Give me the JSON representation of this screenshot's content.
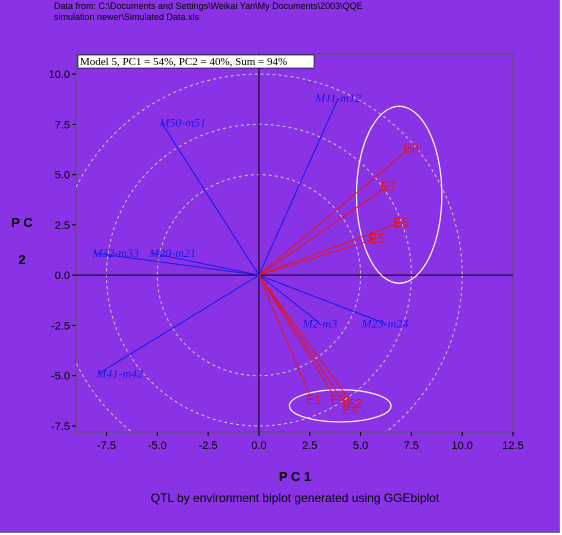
{
  "source_note": {
    "line1": "Data from: C:\\Documents and Settings\\Weikai Yan\\My Documents\\2003\\QQE",
    "line2": "simulation newer\\Simulated Data.xls"
  },
  "colors": {
    "background": "#8a33e6",
    "qtl_vector": "#1a1ae6",
    "environment_vector": "#e61414",
    "concentric_circles": "#c9c9c9",
    "group_ellipses": "#ffffff"
  },
  "chart_data": {
    "type": "scatter",
    "title": "Model 5, PC1 = 54%, PC2 = 40%, Sum = 94%",
    "xlabel": "P C 1",
    "ylabel": "P C 2",
    "caption": "QTL by environment biplot generated using GGEbiplot",
    "xlim": [
      -9.0,
      12.5
    ],
    "ylim": [
      -7.8,
      11.0
    ],
    "xticks": [
      "-7.5",
      "-5.0",
      "-2.5",
      "0.0",
      "2.5",
      "5.0",
      "7.5",
      "10.0",
      "12.5"
    ],
    "yticks": [
      "10.0",
      "7.5",
      "5.0",
      "2.5",
      "0.0",
      "-2.5",
      "-5.0",
      "-7.5"
    ],
    "xtick_values": [
      -7.5,
      -5.0,
      -2.5,
      0.0,
      2.5,
      5.0,
      7.5,
      10.0,
      12.5
    ],
    "ytick_values": [
      10.0,
      7.5,
      5.0,
      2.5,
      0.0,
      -2.5,
      -5.0,
      -7.5
    ],
    "origin_lines": true,
    "concentric_circle_radii": [
      5.0,
      7.5,
      10.0
    ],
    "series": [
      {
        "name": "QTL",
        "points": [
          {
            "label": "M11-m12",
            "x": 3.9,
            "y": 8.8
          },
          {
            "label": "M50-m51",
            "x": -4.8,
            "y": 7.6
          },
          {
            "label": "M32-m33",
            "x": -8.1,
            "y": 1.1
          },
          {
            "label": "M20-m21",
            "x": -5.3,
            "y": 1.1
          },
          {
            "label": "M2-m3",
            "x": 3.0,
            "y": -2.4
          },
          {
            "label": "M23-m24",
            "x": 6.2,
            "y": -2.4
          },
          {
            "label": "M41-m42",
            "x": -7.9,
            "y": -4.9
          }
        ]
      },
      {
        "name": "Environments",
        "points": [
          {
            "label": "E8",
            "x": 7.4,
            "y": 6.3
          },
          {
            "label": "E7",
            "x": 6.3,
            "y": 4.4
          },
          {
            "label": "E6",
            "x": 6.9,
            "y": 2.6
          },
          {
            "label": "E5",
            "x": 5.7,
            "y": 1.8
          },
          {
            "label": "E1",
            "x": 2.6,
            "y": -6.2
          },
          {
            "label": "E2",
            "x": 4.6,
            "y": -6.4
          },
          {
            "label": "E3",
            "x": 3.8,
            "y": -6.2
          },
          {
            "label": "E4",
            "x": 4.4,
            "y": -6.7
          }
        ]
      }
    ],
    "group_ellipses": [
      {
        "cx": 6.9,
        "cy": 4.0,
        "rx": 2.1,
        "ry": 4.4
      },
      {
        "cx": 4.0,
        "cy": -6.5,
        "rx": 2.5,
        "ry": 0.8
      }
    ]
  }
}
